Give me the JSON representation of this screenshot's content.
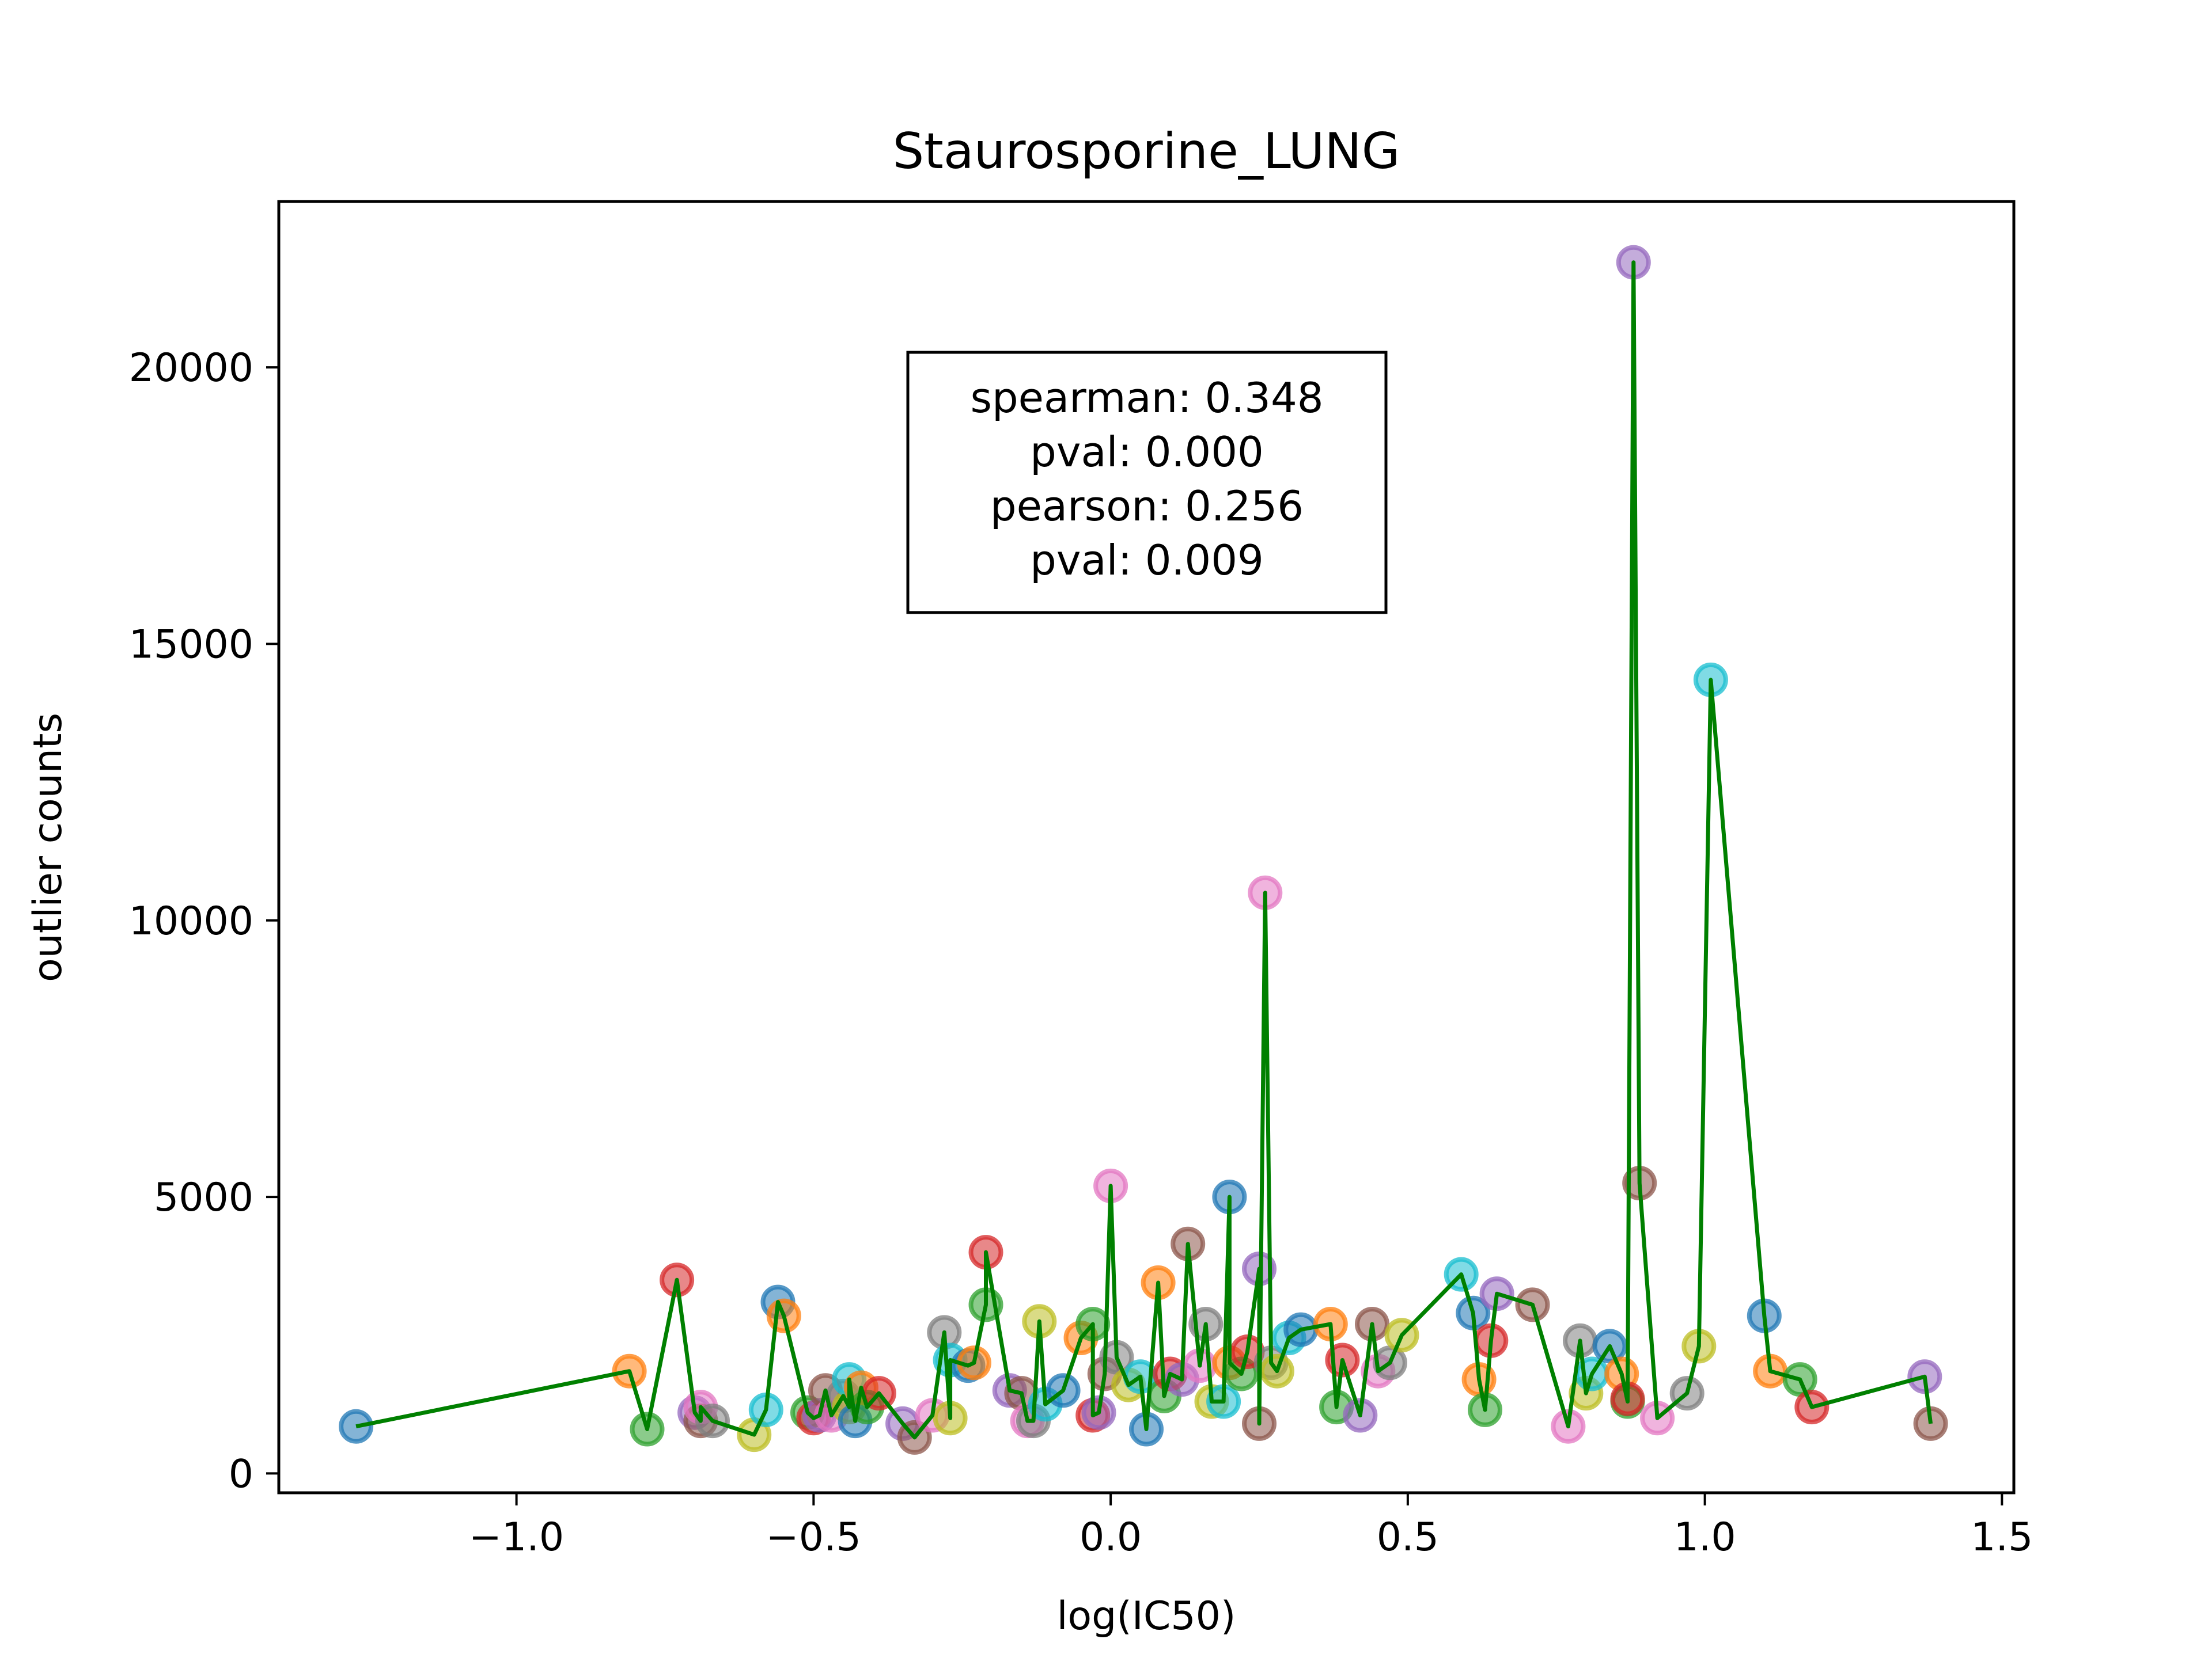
{
  "chart_data": {
    "type": "scatter",
    "title": "Staurosporine_LUNG",
    "xlabel": "log(IC50)",
    "ylabel": "outlier counts",
    "xlim": [
      -1.4,
      1.52
    ],
    "ylim": [
      -350,
      23000
    ],
    "x_ticks": [
      -1.0,
      -0.5,
      0.0,
      0.5,
      1.0,
      1.5
    ],
    "x_tick_labels": [
      "−1.0",
      "−0.5",
      "0.0",
      "0.5",
      "1.0",
      "1.5"
    ],
    "y_ticks": [
      0,
      5000,
      10000,
      15000,
      20000
    ],
    "y_tick_labels": [
      "0",
      "5000",
      "10000",
      "15000",
      "20000"
    ],
    "grid": false,
    "annotation": {
      "lines": [
        "spearman: 0.348",
        "pval: 0.000",
        "pearson: 0.256",
        "pval: 0.009"
      ]
    },
    "line_color": "#008000",
    "palette": [
      "#1f77b4",
      "#ff7f0e",
      "#2ca02c",
      "#d62728",
      "#9467bd",
      "#8c564b",
      "#e377c2",
      "#7f7f7f",
      "#bcbd22",
      "#17becf"
    ],
    "points": [
      [
        -1.27,
        850
      ],
      [
        -0.81,
        1850
      ],
      [
        -0.78,
        800
      ],
      [
        -0.73,
        3500
      ],
      [
        -0.7,
        1100
      ],
      [
        -0.69,
        950
      ],
      [
        -0.69,
        1200
      ],
      [
        -0.67,
        950
      ],
      [
        -0.6,
        700
      ],
      [
        -0.58,
        1150
      ],
      [
        -0.56,
        3100
      ],
      [
        -0.55,
        2850
      ],
      [
        -0.51,
        1100
      ],
      [
        -0.5,
        1000
      ],
      [
        -0.49,
        1050
      ],
      [
        -0.48,
        1500
      ],
      [
        -0.47,
        1050
      ],
      [
        -0.45,
        1400
      ],
      [
        -0.44,
        1200
      ],
      [
        -0.44,
        1700
      ],
      [
        -0.43,
        950
      ],
      [
        -0.42,
        1550
      ],
      [
        -0.41,
        1200
      ],
      [
        -0.39,
        1450
      ],
      [
        -0.35,
        900
      ],
      [
        -0.33,
        650
      ],
      [
        -0.3,
        1050
      ],
      [
        -0.28,
        2550
      ],
      [
        -0.27,
        1000
      ],
      [
        -0.27,
        2050
      ],
      [
        -0.24,
        1950
      ],
      [
        -0.23,
        2000
      ],
      [
        -0.21,
        3050
      ],
      [
        -0.21,
        4000
      ],
      [
        -0.17,
        1500
      ],
      [
        -0.15,
        1450
      ],
      [
        -0.14,
        950
      ],
      [
        -0.13,
        950
      ],
      [
        -0.12,
        2750
      ],
      [
        -0.11,
        1250
      ],
      [
        -0.08,
        1500
      ],
      [
        -0.05,
        2450
      ],
      [
        -0.03,
        2700
      ],
      [
        -0.03,
        1050
      ],
      [
        -0.02,
        1100
      ],
      [
        -0.01,
        1800
      ],
      [
        0.0,
        5200
      ],
      [
        0.01,
        2100
      ],
      [
        0.03,
        1600
      ],
      [
        0.05,
        1750
      ],
      [
        0.06,
        800
      ],
      [
        0.08,
        3450
      ],
      [
        0.09,
        1400
      ],
      [
        0.1,
        1800
      ],
      [
        0.12,
        1700
      ],
      [
        0.13,
        4150
      ],
      [
        0.15,
        1950
      ],
      [
        0.16,
        2700
      ],
      [
        0.17,
        1300
      ],
      [
        0.19,
        1300
      ],
      [
        0.2,
        5000
      ],
      [
        0.2,
        2000
      ],
      [
        0.22,
        1800
      ],
      [
        0.23,
        2200
      ],
      [
        0.25,
        3700
      ],
      [
        0.25,
        900
      ],
      [
        0.26,
        10500
      ],
      [
        0.27,
        2000
      ],
      [
        0.28,
        1850
      ],
      [
        0.3,
        2450
      ],
      [
        0.32,
        2600
      ],
      [
        0.37,
        2700
      ],
      [
        0.38,
        1200
      ],
      [
        0.39,
        2050
      ],
      [
        0.42,
        1050
      ],
      [
        0.44,
        2700
      ],
      [
        0.45,
        1850
      ],
      [
        0.47,
        2000
      ],
      [
        0.49,
        2500
      ],
      [
        0.59,
        3600
      ],
      [
        0.61,
        2900
      ],
      [
        0.62,
        1700
      ],
      [
        0.63,
        1150
      ],
      [
        0.64,
        2400
      ],
      [
        0.65,
        3250
      ],
      [
        0.71,
        3050
      ],
      [
        0.77,
        850
      ],
      [
        0.79,
        2400
      ],
      [
        0.8,
        1450
      ],
      [
        0.81,
        1800
      ],
      [
        0.84,
        2300
      ],
      [
        0.86,
        1800
      ],
      [
        0.87,
        1300
      ],
      [
        0.87,
        1350
      ],
      [
        0.88,
        21900
      ],
      [
        0.89,
        5250
      ],
      [
        0.92,
        1000
      ],
      [
        0.97,
        1450
      ],
      [
        0.99,
        2300
      ],
      [
        1.01,
        14350
      ],
      [
        1.1,
        2850
      ],
      [
        1.11,
        1850
      ],
      [
        1.16,
        1700
      ],
      [
        1.18,
        1200
      ],
      [
        1.37,
        1750
      ],
      [
        1.38,
        900
      ]
    ]
  }
}
